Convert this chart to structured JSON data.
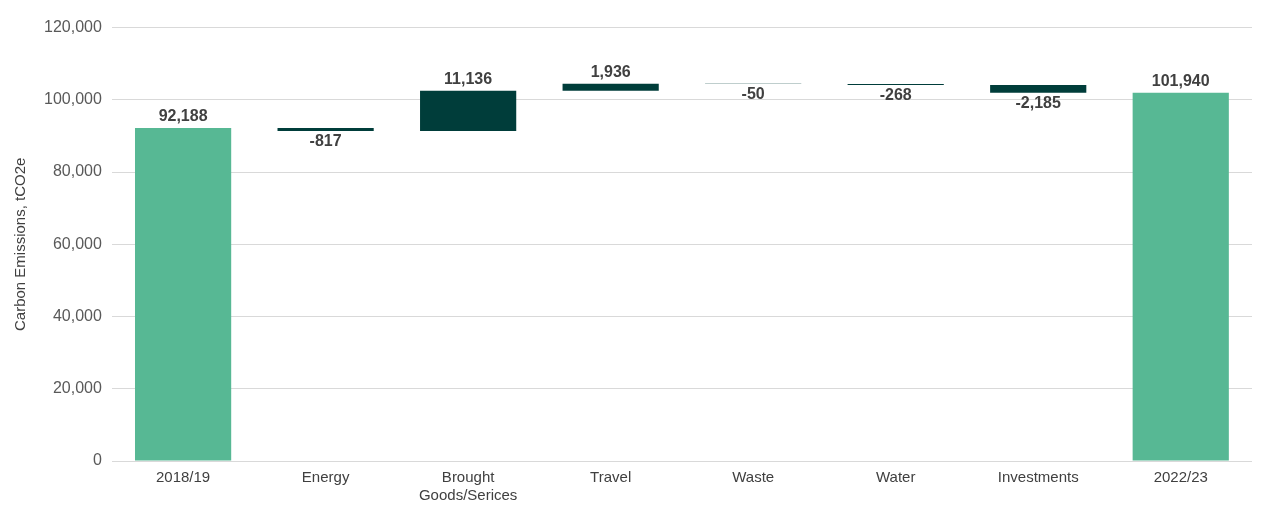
{
  "chart_data": {
    "type": "bar",
    "ylabel": "Carbon Emissions, tCO2e",
    "categories": [
      "2018/19",
      "Energy",
      "Brought Goods/Serices",
      "Travel",
      "Waste",
      "Water",
      "Investments",
      "2022/23"
    ],
    "values": [
      92188,
      -817,
      11136,
      1936,
      -50,
      -268,
      -2185,
      101940
    ],
    "base": [
      0,
      92188,
      91371,
      102507,
      104443,
      104393,
      104125,
      0
    ],
    "colors": [
      "#57b894",
      "#003d3a",
      "#003d3a",
      "#003d3a",
      "#003d3a",
      "#003d3a",
      "#003d3a",
      "#57b894"
    ],
    "value_labels": [
      "92,188",
      "-817",
      "11,136",
      "1,936",
      "-50",
      "-268",
      "-2,185",
      "101,940"
    ],
    "ylim": [
      0,
      120000
    ],
    "yticks": [
      0,
      {
        "value": 20000,
        "label": "20,000"
      },
      {
        "value": 40000,
        "label": "40,000"
      },
      {
        "value": 60000,
        "label": "60,000"
      },
      {
        "value": 80000,
        "label": "80,000"
      },
      {
        "value": 100000,
        "label": "100,000"
      },
      {
        "value": 120000,
        "label": "120,000"
      }
    ],
    "grid": "y",
    "legend": false
  }
}
